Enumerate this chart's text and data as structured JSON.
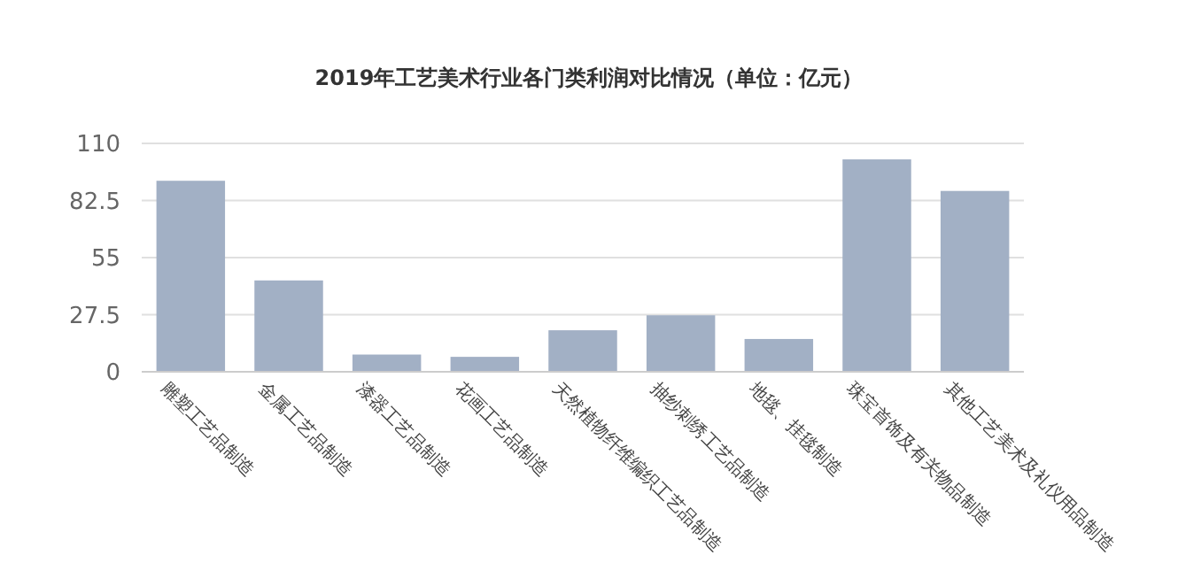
{
  "chart_data": {
    "type": "bar",
    "title": "2019年工艺美术行业各门类利润对比情况（单位：亿元）",
    "categories": [
      "雕塑工艺品制造",
      "金属工艺品制造",
      "漆器工艺品制造",
      "花画工艺品制造",
      "天然植物纤维编织工艺品制造",
      "抽纱刺绣工艺品制造",
      "地毯、挂毯制造",
      "珠宝首饰及有关物品制造",
      "其他工艺美术及礼仪用品制造"
    ],
    "values": [
      92,
      44,
      8.3,
      7.2,
      20,
      27.2,
      15.8,
      102.3,
      87.1
    ],
    "color": "#a2b0c5",
    "ylim": [
      0,
      110
    ],
    "yticks": [
      0,
      27.5,
      55,
      82.5,
      110
    ],
    "grid": true
  }
}
